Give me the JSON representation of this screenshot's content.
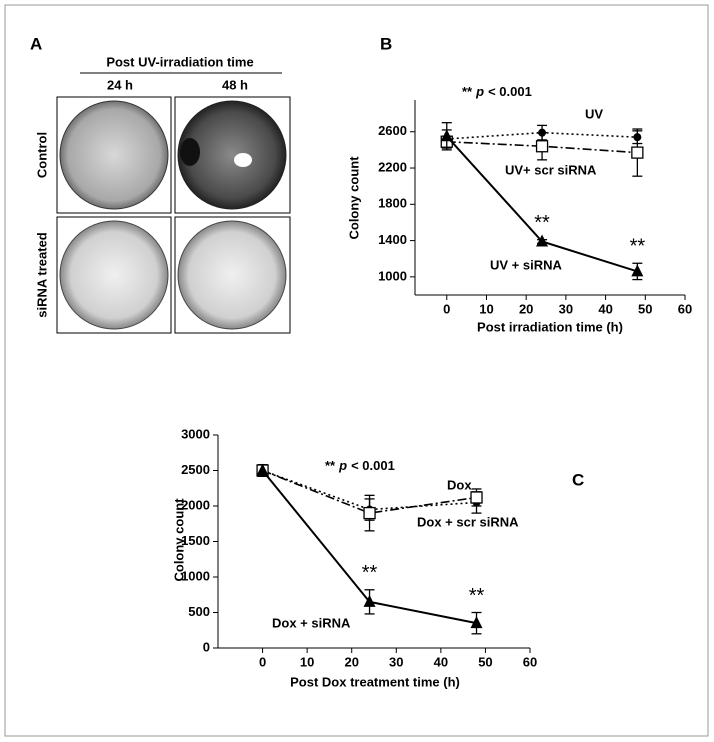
{
  "panel_a": {
    "label": "A",
    "header": "Post UV-irradiation time",
    "columns": [
      "24 h",
      "48 h"
    ],
    "rows": [
      "Control",
      "siRNA treated"
    ]
  },
  "chart_data": [
    {
      "type": "line",
      "panel_label": "B",
      "x_label": "Post irradiation time (h)",
      "y_label": "Colony count",
      "annotation": [
        "**",
        "p",
        "< 0.001"
      ],
      "significance_marks": [
        "**",
        "**"
      ],
      "x": [
        0,
        24,
        48
      ],
      "xlim": [
        -8,
        60
      ],
      "xticks": [
        0,
        10,
        20,
        30,
        40,
        50,
        60
      ],
      "ylim": [
        800,
        2950
      ],
      "yticks": [
        1000,
        1400,
        1800,
        2200,
        2600
      ],
      "series": [
        {
          "name": "UV",
          "color": "#000000",
          "marker": "circle",
          "line_style": "dotted",
          "values": [
            2520,
            2590,
            2540
          ],
          "errors": [
            100,
            80,
            70
          ]
        },
        {
          "name": "UV+ scr siRNA",
          "color": "#000000",
          "marker": "open-square",
          "line_style": "dash-dot",
          "values": [
            2490,
            2440,
            2370
          ],
          "errors": [
            60,
            150,
            260
          ]
        },
        {
          "name": "UV + siRNA",
          "color": "#000000",
          "marker": "triangle",
          "line_style": "solid",
          "values": [
            2550,
            1390,
            1060
          ],
          "errors": [
            150,
            20,
            90
          ]
        }
      ]
    },
    {
      "type": "line",
      "panel_label": "C",
      "x_label": "Post Dox treatment time (h)",
      "y_label": "Colony count",
      "annotation": [
        "**",
        "p",
        "< 0.001"
      ],
      "significance_marks": [
        "**",
        "**"
      ],
      "x": [
        0,
        24,
        48
      ],
      "xlim": [
        -10,
        60
      ],
      "xticks": [
        0,
        10,
        20,
        30,
        40,
        50,
        60
      ],
      "ylim": [
        0,
        3000
      ],
      "yticks": [
        0,
        500,
        1000,
        1500,
        2000,
        2500,
        3000
      ],
      "series": [
        {
          "name": "Dox",
          "color": "#000000",
          "marker": "circle",
          "line_style": "dotted",
          "values": [
            2500,
            1950,
            2050
          ],
          "errors": [
            80,
            150,
            150
          ]
        },
        {
          "name": "Dox + scr siRNA",
          "color": "#000000",
          "marker": "open-square",
          "line_style": "dash-dot",
          "values": [
            2500,
            1900,
            2120
          ],
          "errors": [
            80,
            250,
            120
          ]
        },
        {
          "name": "Dox + siRNA",
          "color": "#000000",
          "marker": "triangle",
          "line_style": "solid",
          "values": [
            2500,
            650,
            350
          ],
          "errors": [
            80,
            170,
            150
          ]
        }
      ]
    }
  ]
}
